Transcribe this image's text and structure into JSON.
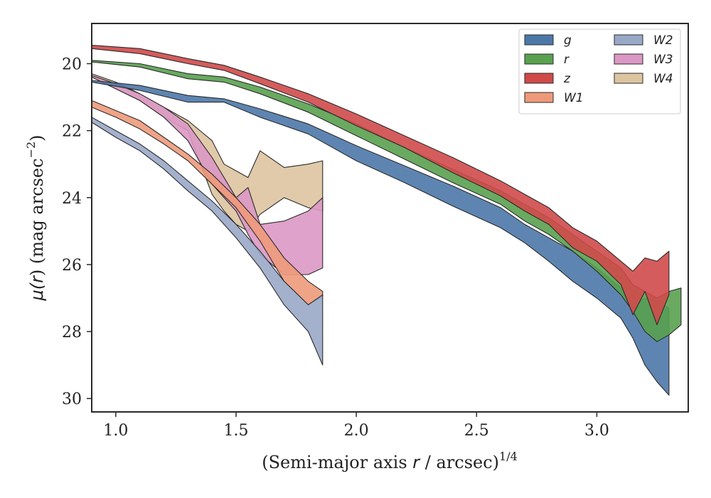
{
  "chart_data": {
    "type": "area",
    "xlabel": "(Semi-major axis r / arcsec)^{1/4}",
    "xlabel_parts": {
      "prefix": "(Semi-major axis ",
      "var": "r",
      "middle": " / arcsec)",
      "sup": "1/4"
    },
    "ylabel": "μ(r) (mag arcsec^{-2})",
    "ylabel_parts": {
      "mu": "μ(",
      "var": "r",
      "close": ")",
      "unit": " (mag arcsec",
      "sup": "−2",
      "end": ")"
    },
    "xlim": [
      0.9,
      3.38
    ],
    "ylim": [
      30.4,
      18.8
    ],
    "y_inverted": true,
    "x_ticks": [
      1.0,
      1.5,
      2.0,
      2.5,
      3.0
    ],
    "x_tick_labels": [
      "1.0",
      "1.5",
      "2.0",
      "2.5",
      "3.0"
    ],
    "y_ticks": [
      20,
      22,
      24,
      26,
      28,
      30
    ],
    "y_tick_labels": [
      "20",
      "22",
      "24",
      "26",
      "28",
      "30"
    ],
    "grid": false,
    "legend_position": "top-right",
    "legend_columns": 2,
    "series": [
      {
        "name": "g",
        "color": "#4C78A8",
        "upper": [
          [
            0.9,
            20.5
          ],
          [
            1.1,
            20.65
          ],
          [
            1.3,
            20.95
          ],
          [
            1.45,
            21.05
          ],
          [
            1.6,
            21.35
          ],
          [
            1.8,
            21.8
          ],
          [
            2.0,
            22.45
          ],
          [
            2.2,
            23.05
          ],
          [
            2.4,
            23.65
          ],
          [
            2.6,
            24.3
          ],
          [
            2.7,
            24.8
          ],
          [
            2.8,
            25.2
          ],
          [
            2.9,
            25.6
          ],
          [
            3.0,
            26.1
          ],
          [
            3.1,
            26.7
          ],
          [
            3.15,
            27.2
          ],
          [
            3.2,
            27.0
          ],
          [
            3.25,
            27.1
          ],
          [
            3.3,
            27.3
          ]
        ],
        "lower": [
          [
            0.9,
            20.55
          ],
          [
            1.1,
            20.8
          ],
          [
            1.3,
            21.15
          ],
          [
            1.45,
            21.15
          ],
          [
            1.6,
            21.6
          ],
          [
            1.8,
            22.1
          ],
          [
            2.0,
            22.9
          ],
          [
            2.2,
            23.55
          ],
          [
            2.4,
            24.25
          ],
          [
            2.6,
            24.9
          ],
          [
            2.7,
            25.35
          ],
          [
            2.8,
            25.9
          ],
          [
            2.9,
            26.5
          ],
          [
            3.0,
            27.0
          ],
          [
            3.1,
            27.6
          ],
          [
            3.15,
            28.2
          ],
          [
            3.2,
            29.0
          ],
          [
            3.25,
            29.5
          ],
          [
            3.3,
            29.9
          ]
        ]
      },
      {
        "name": "r",
        "color": "#59A14F",
        "upper": [
          [
            0.9,
            19.9
          ],
          [
            1.1,
            20.0
          ],
          [
            1.3,
            20.3
          ],
          [
            1.45,
            20.4
          ],
          [
            1.6,
            20.7
          ],
          [
            1.8,
            21.2
          ],
          [
            2.0,
            21.8
          ],
          [
            2.2,
            22.5
          ],
          [
            2.4,
            23.15
          ],
          [
            2.6,
            23.8
          ],
          [
            2.7,
            24.2
          ],
          [
            2.8,
            24.6
          ],
          [
            2.9,
            25.1
          ],
          [
            3.0,
            25.6
          ],
          [
            3.1,
            26.1
          ],
          [
            3.15,
            26.6
          ],
          [
            3.2,
            26.8
          ],
          [
            3.25,
            27.0
          ],
          [
            3.3,
            26.8
          ],
          [
            3.35,
            26.7
          ]
        ],
        "lower": [
          [
            0.9,
            19.95
          ],
          [
            1.1,
            20.1
          ],
          [
            1.3,
            20.45
          ],
          [
            1.45,
            20.55
          ],
          [
            1.6,
            20.9
          ],
          [
            1.8,
            21.45
          ],
          [
            2.0,
            22.15
          ],
          [
            2.2,
            22.85
          ],
          [
            2.4,
            23.55
          ],
          [
            2.6,
            24.2
          ],
          [
            2.7,
            24.7
          ],
          [
            2.8,
            25.1
          ],
          [
            2.9,
            25.6
          ],
          [
            3.0,
            26.2
          ],
          [
            3.1,
            26.9
          ],
          [
            3.15,
            27.4
          ],
          [
            3.2,
            28.0
          ],
          [
            3.25,
            28.3
          ],
          [
            3.3,
            28.1
          ],
          [
            3.35,
            27.8
          ]
        ]
      },
      {
        "name": "z",
        "color": "#D04A4A",
        "upper": [
          [
            0.9,
            19.45
          ],
          [
            1.1,
            19.55
          ],
          [
            1.3,
            19.85
          ],
          [
            1.45,
            20.05
          ],
          [
            1.6,
            20.4
          ],
          [
            1.8,
            20.9
          ],
          [
            2.0,
            21.5
          ],
          [
            2.2,
            22.15
          ],
          [
            2.4,
            22.8
          ],
          [
            2.6,
            23.5
          ],
          [
            2.7,
            23.9
          ],
          [
            2.8,
            24.3
          ],
          [
            2.9,
            24.9
          ],
          [
            3.0,
            25.3
          ],
          [
            3.1,
            25.9
          ],
          [
            3.15,
            26.2
          ],
          [
            3.2,
            25.8
          ],
          [
            3.25,
            25.9
          ],
          [
            3.3,
            25.6
          ]
        ],
        "lower": [
          [
            0.9,
            19.55
          ],
          [
            1.1,
            19.7
          ],
          [
            1.3,
            20.0
          ],
          [
            1.45,
            20.2
          ],
          [
            1.6,
            20.6
          ],
          [
            1.8,
            21.15
          ],
          [
            2.0,
            21.85
          ],
          [
            2.2,
            22.5
          ],
          [
            2.4,
            23.25
          ],
          [
            2.6,
            23.95
          ],
          [
            2.7,
            24.4
          ],
          [
            2.8,
            24.8
          ],
          [
            2.9,
            25.5
          ],
          [
            3.0,
            25.9
          ],
          [
            3.1,
            26.6
          ],
          [
            3.15,
            27.5
          ],
          [
            3.2,
            26.8
          ],
          [
            3.25,
            27.8
          ],
          [
            3.3,
            26.9
          ]
        ]
      },
      {
        "name": "W1",
        "color": "#EE9A7A",
        "upper": [
          [
            0.9,
            21.1
          ],
          [
            1.0,
            21.4
          ],
          [
            1.1,
            21.7
          ],
          [
            1.2,
            22.2
          ],
          [
            1.3,
            22.7
          ],
          [
            1.4,
            23.3
          ],
          [
            1.5,
            24.0
          ],
          [
            1.6,
            24.8
          ],
          [
            1.7,
            25.8
          ],
          [
            1.8,
            26.5
          ],
          [
            1.86,
            26.8
          ]
        ],
        "lower": [
          [
            0.9,
            21.3
          ],
          [
            1.0,
            21.6
          ],
          [
            1.1,
            21.95
          ],
          [
            1.2,
            22.4
          ],
          [
            1.3,
            22.9
          ],
          [
            1.4,
            23.6
          ],
          [
            1.5,
            24.3
          ],
          [
            1.6,
            25.3
          ],
          [
            1.7,
            26.5
          ],
          [
            1.8,
            27.2
          ],
          [
            1.86,
            26.95
          ]
        ]
      },
      {
        "name": "W2",
        "color": "#9AA8C8",
        "upper": [
          [
            0.9,
            21.6
          ],
          [
            1.0,
            22.0
          ],
          [
            1.1,
            22.4
          ],
          [
            1.2,
            22.9
          ],
          [
            1.3,
            23.5
          ],
          [
            1.4,
            24.1
          ],
          [
            1.5,
            24.8
          ],
          [
            1.6,
            25.6
          ],
          [
            1.7,
            26.5
          ],
          [
            1.8,
            27.2
          ],
          [
            1.86,
            26.9
          ]
        ],
        "lower": [
          [
            0.9,
            21.75
          ],
          [
            1.0,
            22.2
          ],
          [
            1.1,
            22.6
          ],
          [
            1.2,
            23.15
          ],
          [
            1.3,
            23.8
          ],
          [
            1.4,
            24.4
          ],
          [
            1.5,
            25.2
          ],
          [
            1.6,
            26.1
          ],
          [
            1.7,
            27.2
          ],
          [
            1.8,
            28.0
          ],
          [
            1.86,
            29.0
          ]
        ]
      },
      {
        "name": "W3",
        "color": "#DC98C4",
        "upper": [
          [
            0.9,
            20.35
          ],
          [
            1.0,
            20.6
          ],
          [
            1.1,
            20.9
          ],
          [
            1.2,
            21.3
          ],
          [
            1.3,
            21.8
          ],
          [
            1.4,
            22.8
          ],
          [
            1.5,
            24.0
          ],
          [
            1.55,
            23.7
          ],
          [
            1.6,
            24.8
          ],
          [
            1.7,
            24.7
          ],
          [
            1.8,
            24.4
          ],
          [
            1.86,
            24.0
          ]
        ],
        "lower": [
          [
            0.9,
            20.4
          ],
          [
            1.0,
            20.75
          ],
          [
            1.1,
            21.1
          ],
          [
            1.2,
            21.6
          ],
          [
            1.3,
            22.3
          ],
          [
            1.4,
            23.6
          ],
          [
            1.5,
            24.4
          ],
          [
            1.55,
            25.1
          ],
          [
            1.6,
            25.7
          ],
          [
            1.7,
            26.3
          ],
          [
            1.8,
            26.3
          ],
          [
            1.86,
            26.1
          ]
        ]
      },
      {
        "name": "W4",
        "color": "#DDC4A0",
        "upper": [
          [
            0.9,
            20.3
          ],
          [
            1.0,
            20.55
          ],
          [
            1.1,
            20.9
          ],
          [
            1.2,
            21.3
          ],
          [
            1.3,
            21.7
          ],
          [
            1.4,
            22.3
          ],
          [
            1.45,
            23.0
          ],
          [
            1.5,
            23.2
          ],
          [
            1.55,
            23.4
          ],
          [
            1.6,
            22.6
          ],
          [
            1.7,
            23.1
          ],
          [
            1.8,
            23.0
          ],
          [
            1.86,
            22.9
          ]
        ],
        "lower": [
          [
            0.9,
            20.4
          ],
          [
            1.0,
            20.75
          ],
          [
            1.1,
            21.1
          ],
          [
            1.2,
            21.6
          ],
          [
            1.3,
            22.0
          ],
          [
            1.4,
            23.9
          ],
          [
            1.45,
            24.4
          ],
          [
            1.5,
            24.8
          ],
          [
            1.55,
            25.0
          ],
          [
            1.6,
            24.5
          ],
          [
            1.7,
            24.0
          ],
          [
            1.8,
            24.3
          ],
          [
            1.86,
            24.4
          ]
        ]
      }
    ],
    "draw_order": [
      "W4",
      "W3",
      "W1",
      "W2",
      "g",
      "r",
      "z"
    ]
  }
}
